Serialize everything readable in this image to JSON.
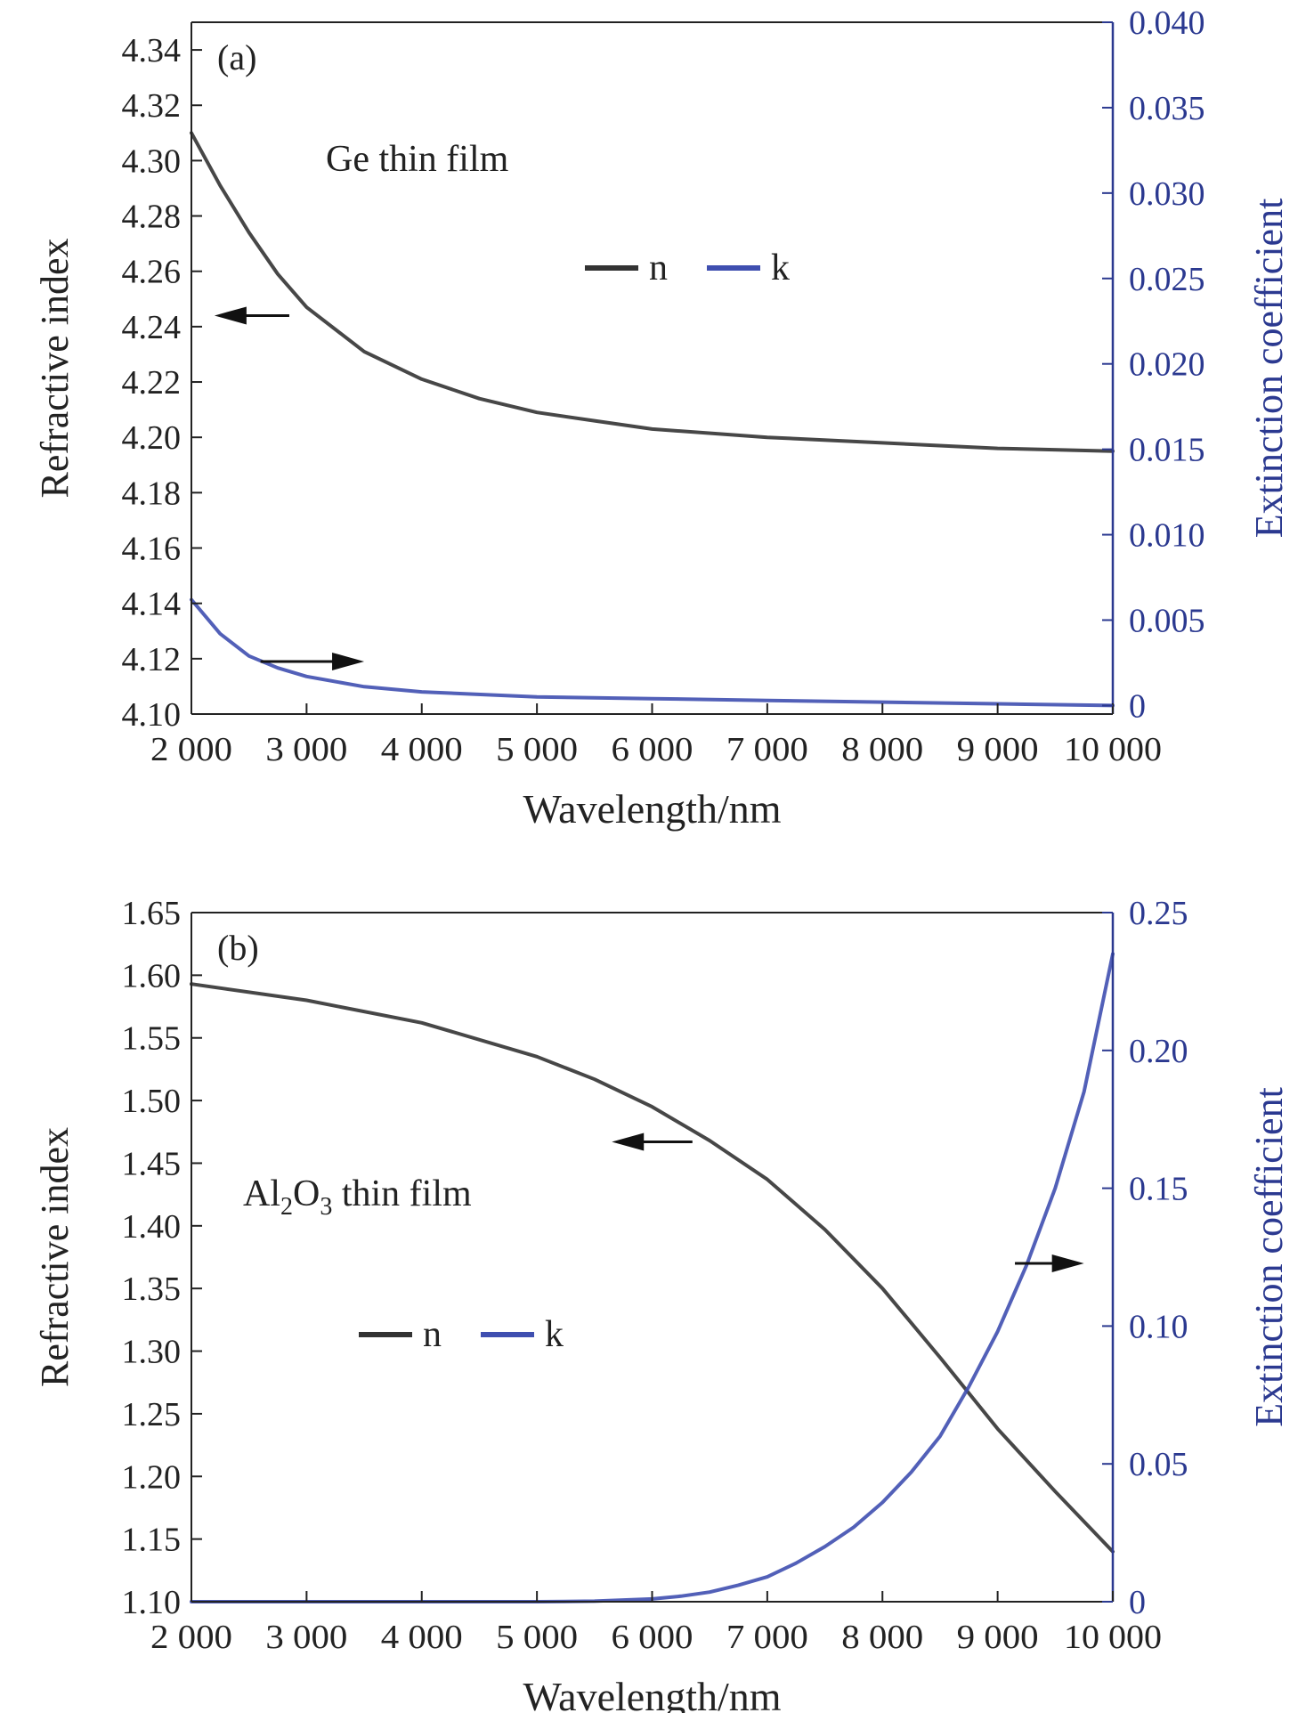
{
  "colors": {
    "n": "#333333",
    "k": "#3f4fb0",
    "right_axis": "#2b3990",
    "left_axis": "#222222"
  },
  "chart_data": [
    {
      "type": "line",
      "panel_label": "(a)",
      "annotation": "Ge thin film",
      "xlabel": "Wavelength/nm",
      "ylabel": "Refractive index",
      "y2label": "Extinction coefficient",
      "xlim": [
        2000,
        10000
      ],
      "ylim": [
        4.1,
        4.35
      ],
      "y2lim": [
        -0.0005,
        0.04
      ],
      "xticks": [
        2000,
        3000,
        4000,
        5000,
        6000,
        7000,
        8000,
        9000,
        10000
      ],
      "xtick_labels": [
        "2 000",
        "3 000",
        "4 000",
        "5 000",
        "6 000",
        "7 000",
        "8 000",
        "9 000",
        "10 000"
      ],
      "yticks": [
        4.1,
        4.12,
        4.14,
        4.16,
        4.18,
        4.2,
        4.22,
        4.24,
        4.26,
        4.28,
        4.3,
        4.32,
        4.34
      ],
      "ytick_labels": [
        "4.10",
        "4.12",
        "4.14",
        "4.16",
        "4.18",
        "4.20",
        "4.22",
        "4.24",
        "4.26",
        "4.28",
        "4.30",
        "4.32",
        "4.34"
      ],
      "y2ticks": [
        0,
        0.005,
        0.01,
        0.015,
        0.02,
        0.025,
        0.03,
        0.035,
        0.04
      ],
      "y2tick_labels": [
        "0",
        "0.005",
        "0.010",
        "0.015",
        "0.020",
        "0.025",
        "0.030",
        "0.035",
        "0.040"
      ],
      "legend": [
        "n",
        "k"
      ],
      "legend_placement": "top-center",
      "series": [
        {
          "name": "n",
          "axis": "left",
          "x": [
            2000,
            2250,
            2500,
            2750,
            3000,
            3500,
            4000,
            4500,
            5000,
            5500,
            6000,
            7000,
            8000,
            9000,
            10000
          ],
          "y": [
            4.31,
            4.291,
            4.274,
            4.259,
            4.247,
            4.231,
            4.221,
            4.214,
            4.209,
            4.206,
            4.203,
            4.2,
            4.198,
            4.196,
            4.195
          ]
        },
        {
          "name": "k",
          "axis": "right",
          "x": [
            2000,
            2250,
            2500,
            2750,
            3000,
            3500,
            4000,
            5000,
            6000,
            7000,
            8000,
            9000,
            10000
          ],
          "y": [
            0.0062,
            0.0042,
            0.0029,
            0.0022,
            0.0017,
            0.0011,
            0.0008,
            0.0005,
            0.0004,
            0.0003,
            0.0002,
            0.0001,
            0.0
          ]
        }
      ],
      "arrows": [
        {
          "direction": "left",
          "points_to": "n axis",
          "x_from": 2850,
          "x_to": 2200,
          "y": 4.244,
          "axis": "left"
        },
        {
          "direction": "right",
          "points_to": "k axis",
          "x_from": 2600,
          "x_to": 3500,
          "y": 4.119,
          "axis": "left"
        }
      ]
    },
    {
      "type": "line",
      "panel_label": "(b)",
      "annotation_parts": [
        "Al",
        "2",
        "O",
        "3",
        " thin film"
      ],
      "xlabel": "Wavelength/nm",
      "ylabel": "Refractive index",
      "y2label": "Extinction coefficient",
      "xlim": [
        2000,
        10000
      ],
      "ylim": [
        1.1,
        1.65
      ],
      "y2lim": [
        0,
        0.25
      ],
      "xticks": [
        2000,
        3000,
        4000,
        5000,
        6000,
        7000,
        8000,
        9000,
        10000
      ],
      "xtick_labels": [
        "2 000",
        "3 000",
        "4 000",
        "5 000",
        "6 000",
        "7 000",
        "8 000",
        "9 000",
        "10 000"
      ],
      "yticks": [
        1.1,
        1.15,
        1.2,
        1.25,
        1.3,
        1.35,
        1.4,
        1.45,
        1.5,
        1.55,
        1.6,
        1.65
      ],
      "ytick_labels": [
        "1.10",
        "1.15",
        "1.20",
        "1.25",
        "1.30",
        "1.35",
        "1.40",
        "1.45",
        "1.50",
        "1.55",
        "1.60",
        "1.65"
      ],
      "y2ticks": [
        0,
        0.05,
        0.1,
        0.15,
        0.2,
        0.25
      ],
      "y2tick_labels": [
        "0",
        "0.05",
        "0.10",
        "0.15",
        "0.20",
        "0.25"
      ],
      "legend": [
        "n",
        "k"
      ],
      "legend_placement": "center-left",
      "series": [
        {
          "name": "n",
          "axis": "left",
          "x": [
            2000,
            3000,
            4000,
            5000,
            5500,
            6000,
            6500,
            7000,
            7500,
            8000,
            8500,
            9000,
            9500,
            10000
          ],
          "y": [
            1.593,
            1.58,
            1.562,
            1.535,
            1.517,
            1.495,
            1.468,
            1.437,
            1.397,
            1.35,
            1.295,
            1.238,
            1.188,
            1.14
          ]
        },
        {
          "name": "k",
          "axis": "right",
          "x": [
            2000,
            3000,
            4000,
            5000,
            5500,
            6000,
            6250,
            6500,
            6750,
            7000,
            7250,
            7500,
            7750,
            8000,
            8250,
            8500,
            8750,
            9000,
            9250,
            9500,
            9750,
            10000
          ],
          "y": [
            0.0,
            0.0,
            0.0,
            0.0,
            0.0002,
            0.001,
            0.002,
            0.0035,
            0.006,
            0.009,
            0.014,
            0.02,
            0.027,
            0.036,
            0.047,
            0.06,
            0.078,
            0.098,
            0.122,
            0.15,
            0.185,
            0.235
          ]
        }
      ],
      "arrows": [
        {
          "direction": "left",
          "points_to": "n axis",
          "x_from": 6350,
          "x_to": 5650,
          "y": 1.467,
          "axis": "left"
        },
        {
          "direction": "right",
          "points_to": "k axis",
          "x_from": 9150,
          "x_to": 9750,
          "y": 1.37,
          "axis": "left"
        }
      ]
    }
  ]
}
